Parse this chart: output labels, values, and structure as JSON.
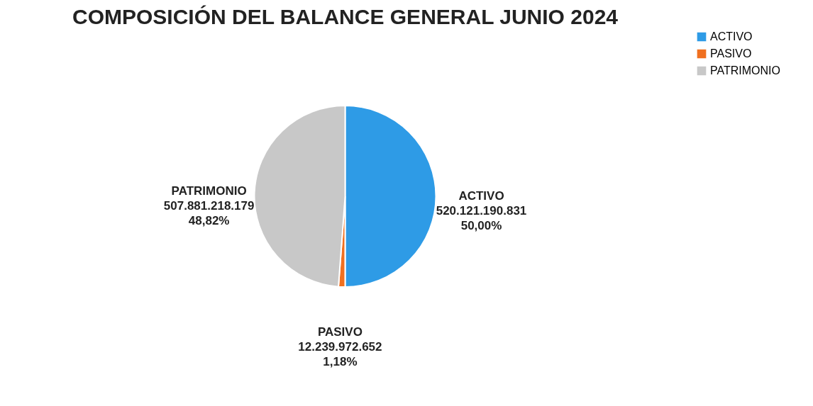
{
  "chart_data": {
    "type": "pie",
    "title": "COMPOSICIÓN DEL BALANCE GENERAL JUNIO 2024",
    "categories": [
      "ACTIVO",
      "PASIVO",
      "PATRIMONIO"
    ],
    "values": [
      520121190831,
      12239972652,
      507881218179
    ],
    "value_labels": [
      "520.121.190.831\n50,00%",
      "12.239.972.652\n1,18%",
      "507.881.218.179\n48,82%"
    ],
    "colors": [
      "#2e9be6",
      "#f07020",
      "#c8c8c8"
    ],
    "legend": "right"
  }
}
